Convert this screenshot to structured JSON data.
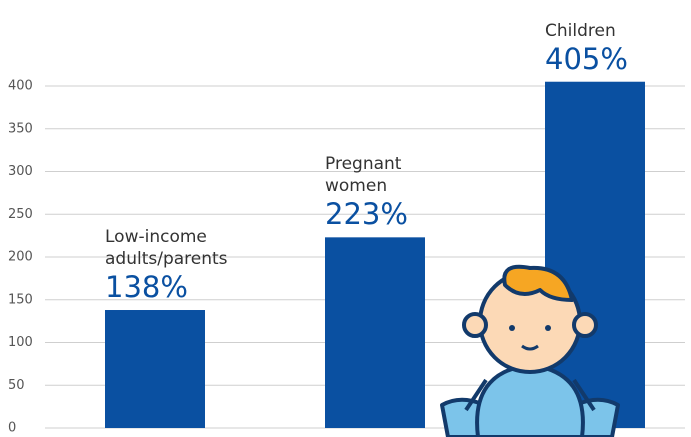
{
  "chart_data": {
    "type": "bar",
    "categories": [
      "Low-income adults/parents",
      "Pregnant women",
      "Children"
    ],
    "values": [
      138,
      223,
      405
    ],
    "value_labels": [
      "138%",
      "223%",
      "405%"
    ],
    "color": "#0a50a1",
    "ylim": [
      0,
      450
    ],
    "yticks": [
      0,
      50,
      100,
      150,
      200,
      250,
      300,
      350,
      400
    ],
    "grid": true
  }
}
